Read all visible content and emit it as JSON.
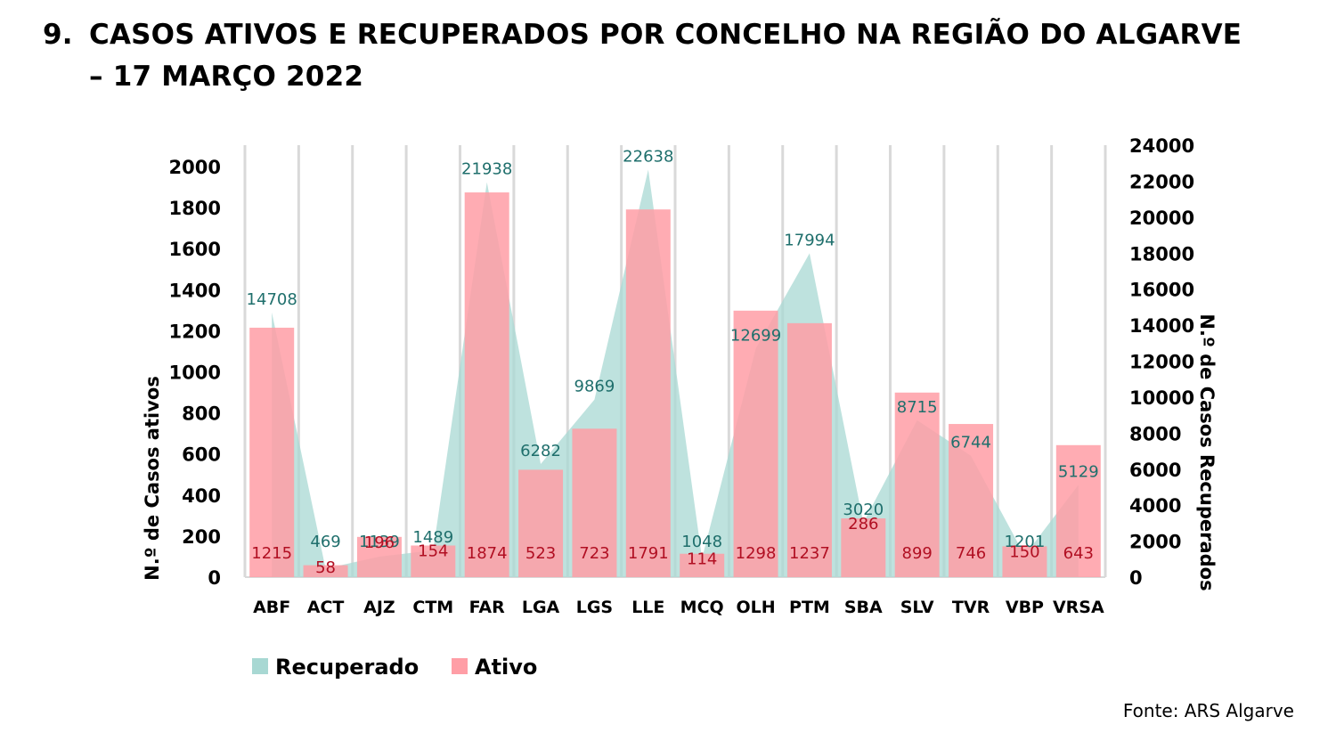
{
  "title": {
    "number": "9.",
    "line1": "CASOS ATIVOS E RECUPERADOS POR CONCELHO NA REGIÃO DO ALGARVE",
    "line2": "– 17 MARÇO 2022"
  },
  "source": "Fonte: ARS Algarve",
  "colors": {
    "ativo": "#ff9ea6",
    "recuperado": "#a8d8d3",
    "ativo_label": "#b10f22",
    "recuperado_label": "#1f6f6c",
    "grid": "#d9d9d9"
  },
  "chart_data": {
    "type": "bar",
    "categories": [
      "ABF",
      "ACT",
      "AJZ",
      "CTM",
      "FAR",
      "LGA",
      "LGS",
      "LLE",
      "MCQ",
      "OLH",
      "PTM",
      "SBA",
      "SLV",
      "TVR",
      "VBP",
      "VRSA"
    ],
    "series": [
      {
        "name": "Ativo",
        "type": "bar",
        "axis": "left",
        "values": [
          1215,
          58,
          196,
          154,
          1874,
          523,
          723,
          1791,
          114,
          1298,
          1237,
          286,
          899,
          746,
          150,
          643
        ]
      },
      {
        "name": "Recuperado",
        "type": "area",
        "axis": "right",
        "values": [
          14708,
          469,
          1139,
          1489,
          21938,
          6282,
          9869,
          22638,
          1048,
          12699,
          17994,
          3020,
          8715,
          6744,
          1201,
          5129
        ]
      }
    ],
    "ylabel": "N.º de Casos ativos",
    "y2label": "N.º de Casos Recuperados",
    "ylim": [
      0,
      2000
    ],
    "y2lim": [
      0,
      24000
    ],
    "yticks": [
      "0",
      "200",
      "400",
      "600",
      "800",
      "1000",
      "1200",
      "1400",
      "1600",
      "1800",
      "2000"
    ],
    "y2ticks": [
      "0",
      "2000",
      "4000",
      "6000",
      "8000",
      "10000",
      "12000",
      "14000",
      "16000",
      "18000",
      "20000",
      "22000",
      "24000"
    ],
    "legend_position": "bottom-left",
    "grid": "vertical"
  }
}
